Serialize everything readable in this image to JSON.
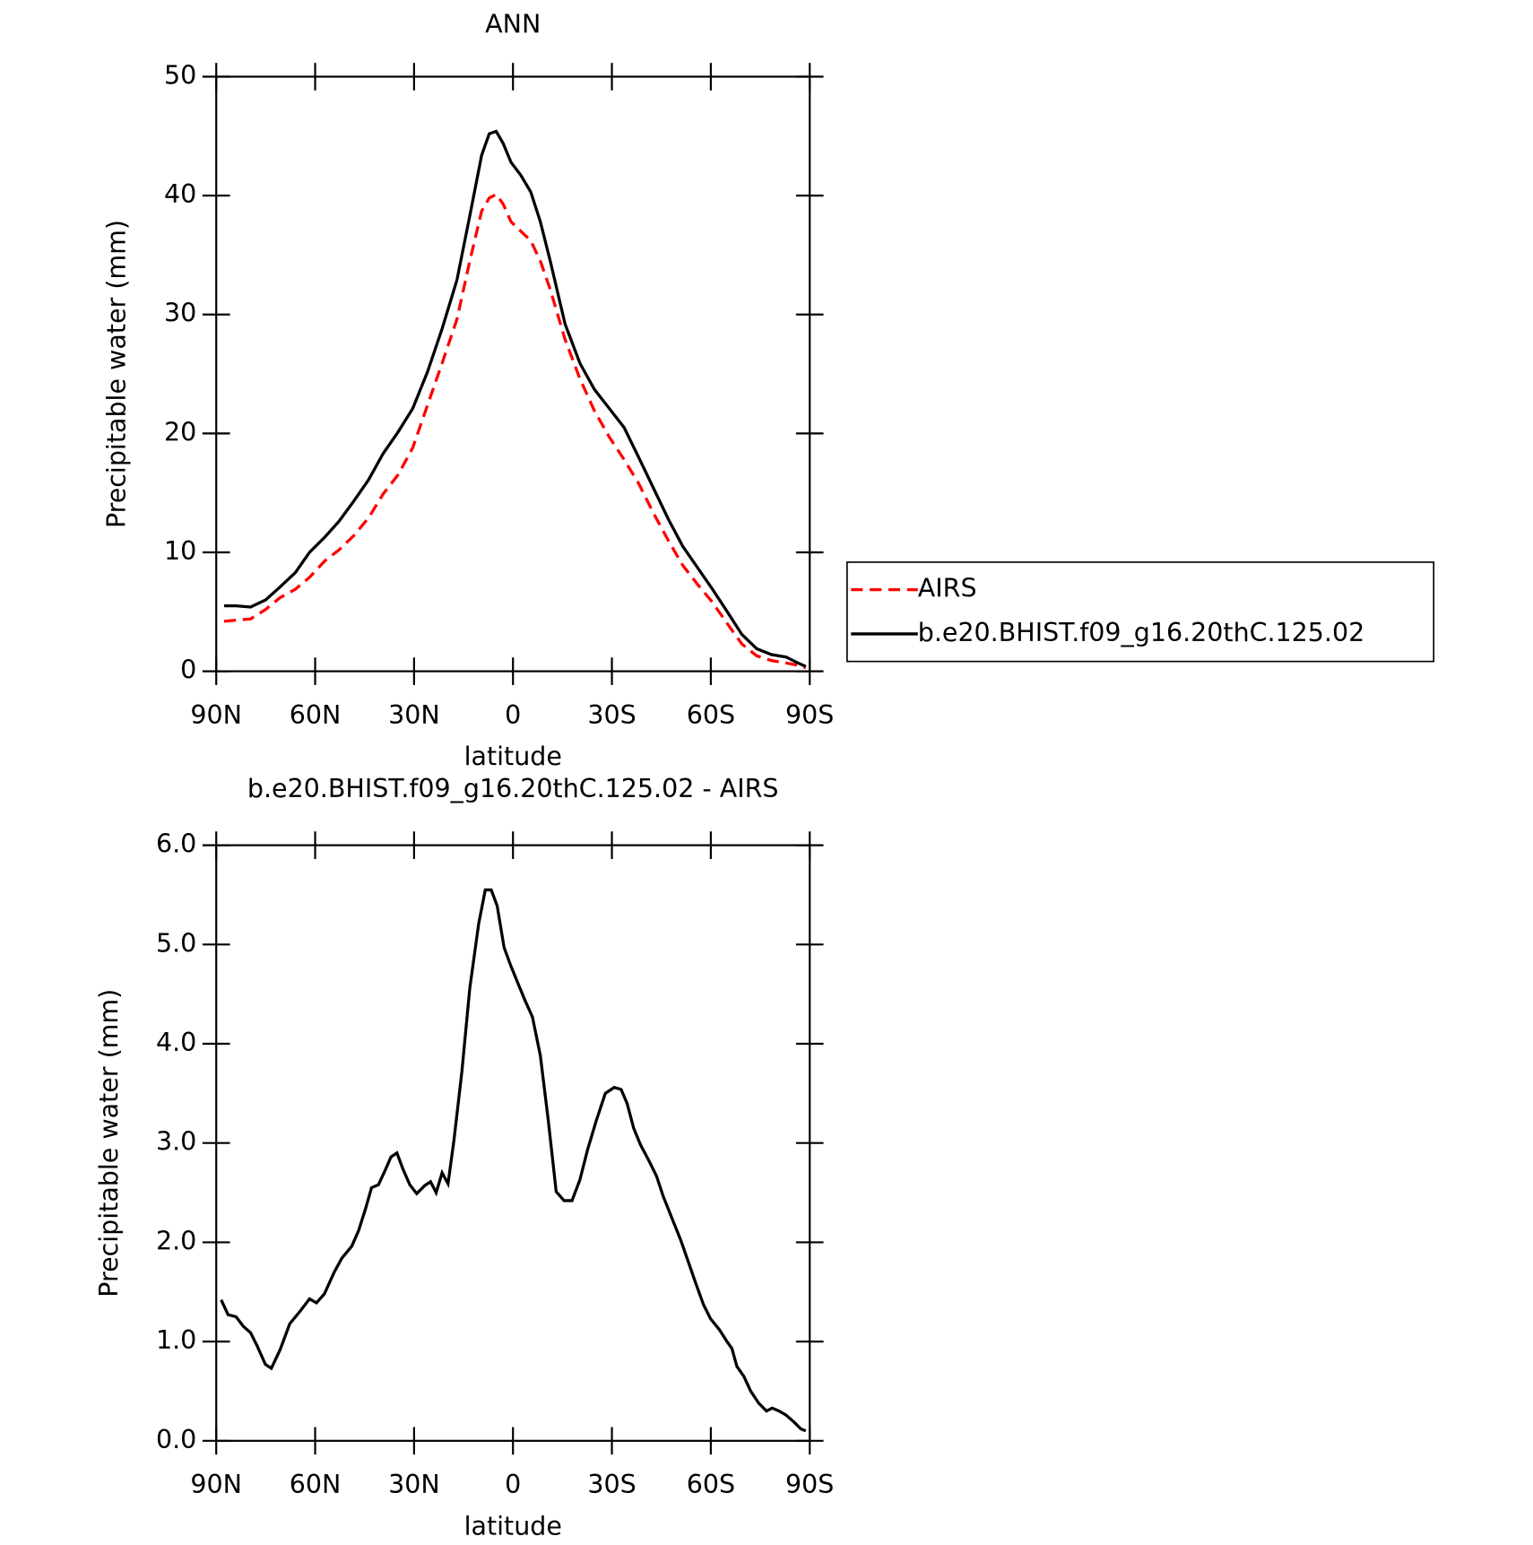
{
  "chart_data": [
    {
      "type": "line",
      "title": "ANN",
      "xlabel": "latitude",
      "ylabel": "Precipitable water (mm)",
      "xlim": [
        90,
        -90
      ],
      "ylim": [
        0,
        50
      ],
      "xticks": [
        {
          "value": 90,
          "label": "90N"
        },
        {
          "value": 60,
          "label": "60N"
        },
        {
          "value": 30,
          "label": "30N"
        },
        0,
        {
          "value": -30,
          "label": "30S"
        },
        {
          "value": -60,
          "label": "60S"
        },
        {
          "value": -90,
          "label": "90S"
        }
      ],
      "yticks": [
        0,
        10,
        20,
        30,
        40,
        50
      ],
      "legend": "right",
      "x": [
        87.6,
        84,
        79.6,
        75,
        70.6,
        66,
        61.7,
        57,
        52.8,
        48.3,
        43.8,
        39.4,
        34.9,
        30.4,
        25.9,
        21.5,
        17,
        13.1,
        9.5,
        7.2,
        5.1,
        3,
        0.6,
        -2.4,
        -5.4,
        -8.3,
        -11.3,
        -15.8,
        -20.3,
        -24.7,
        -29.2,
        -33.7,
        -38.1,
        -42.6,
        -47.1,
        -51.5,
        -56,
        -60.5,
        -65,
        -69.4,
        -73.9,
        -78.4,
        -82.8,
        -86.4,
        -88.8
      ],
      "series": [
        {
          "name": "AIRS",
          "color": "#ff0000",
          "style": "dashed",
          "values": [
            4.2,
            4.3,
            4.4,
            5.2,
            6.2,
            6.9,
            7.9,
            9.3,
            10.2,
            11.4,
            12.9,
            14.9,
            16.5,
            18.8,
            22.4,
            25.9,
            29.6,
            34.5,
            38.7,
            39.8,
            40.1,
            39.3,
            37.8,
            37.0,
            36.2,
            34.5,
            32.1,
            27.9,
            24.6,
            21.9,
            19.7,
            17.8,
            15.8,
            13.3,
            11.0,
            8.9,
            7.3,
            5.8,
            4.0,
            2.3,
            1.3,
            0.9,
            0.7,
            0.5,
            0.3
          ]
        },
        {
          "name": "b.e20.BHIST.f09_g16.20thC.125.02",
          "color": "#000000",
          "style": "solid",
          "values": [
            5.5,
            5.5,
            5.4,
            6.0,
            7.1,
            8.3,
            10.0,
            11.3,
            12.6,
            14.3,
            16.1,
            18.3,
            20.1,
            22.1,
            25.2,
            28.8,
            32.9,
            38.3,
            43.4,
            45.2,
            45.4,
            44.4,
            42.8,
            41.7,
            40.3,
            37.8,
            34.5,
            29.2,
            25.9,
            23.7,
            22.1,
            20.5,
            18.0,
            15.4,
            12.8,
            10.5,
            8.7,
            6.9,
            5.0,
            3.1,
            1.9,
            1.4,
            1.2,
            0.7,
            0.4
          ]
        }
      ]
    },
    {
      "type": "line",
      "title": "b.e20.BHIST.f09_g16.20thC.125.02 - AIRS",
      "xlabel": "latitude",
      "ylabel": "Precipitable water (mm)",
      "xlim": [
        90,
        -90
      ],
      "ylim": [
        0,
        6
      ],
      "xticks": [
        {
          "value": 90,
          "label": "90N"
        },
        {
          "value": 60,
          "label": "60N"
        },
        {
          "value": 30,
          "label": "30N"
        },
        0,
        {
          "value": -30,
          "label": "30S"
        },
        {
          "value": -60,
          "label": "60S"
        },
        {
          "value": -90,
          "label": "90S"
        }
      ],
      "yticks": [
        {
          "value": 0,
          "label": "0.0"
        },
        {
          "value": 1,
          "label": "1.0"
        },
        {
          "value": 2,
          "label": "2.0"
        },
        {
          "value": 3,
          "label": "3.0"
        },
        {
          "value": 4,
          "label": "4.0"
        },
        {
          "value": 5,
          "label": "5.0"
        },
        {
          "value": 6,
          "label": "6.0"
        }
      ],
      "x": [
        88.5,
        86.4,
        84.0,
        81.7,
        79.6,
        77.5,
        75.1,
        73.3,
        70.6,
        67.7,
        64.7,
        61.7,
        59.6,
        57.2,
        54.2,
        51.9,
        48.9,
        46.8,
        44.7,
        42.9,
        40.8,
        38.7,
        37.0,
        35.2,
        33.4,
        31.3,
        29.2,
        26.8,
        25.0,
        23.3,
        21.5,
        19.7,
        17.9,
        15.5,
        13.1,
        10.4,
        8.4,
        6.6,
        4.8,
        2.7,
        0.6,
        -1.5,
        -3.6,
        -5.9,
        -8.3,
        -10.7,
        -13.1,
        -15.5,
        -17.9,
        -20.3,
        -22.6,
        -25.3,
        -28.0,
        -30.7,
        -32.8,
        -34.6,
        -36.6,
        -38.7,
        -41.1,
        -43.5,
        -45.6,
        -48.6,
        -50.9,
        -53.0,
        -55.4,
        -57.8,
        -59.9,
        -62.6,
        -64.9,
        -66.4,
        -67.9,
        -70.0,
        -72.1,
        -74.5,
        -76.9,
        -78.6,
        -80.7,
        -82.8,
        -85.2,
        -87.3,
        -88.8
      ],
      "series": [
        {
          "color": "#000000",
          "style": "solid",
          "values": [
            1.42,
            1.27,
            1.25,
            1.15,
            1.09,
            0.95,
            0.77,
            0.73,
            0.92,
            1.18,
            1.3,
            1.43,
            1.39,
            1.48,
            1.7,
            1.84,
            1.96,
            2.12,
            2.34,
            2.55,
            2.58,
            2.73,
            2.86,
            2.9,
            2.74,
            2.58,
            2.49,
            2.57,
            2.61,
            2.5,
            2.7,
            2.59,
            3.03,
            3.72,
            4.56,
            5.21,
            5.55,
            5.55,
            5.39,
            4.97,
            4.78,
            4.61,
            4.44,
            4.27,
            3.88,
            3.23,
            2.51,
            2.42,
            2.42,
            2.63,
            2.93,
            3.23,
            3.5,
            3.56,
            3.54,
            3.4,
            3.15,
            2.98,
            2.83,
            2.67,
            2.46,
            2.21,
            2.02,
            1.82,
            1.59,
            1.37,
            1.23,
            1.12,
            1.0,
            0.93,
            0.75,
            0.65,
            0.5,
            0.38,
            0.3,
            0.33,
            0.3,
            0.26,
            0.19,
            0.12,
            0.1
          ]
        }
      ]
    }
  ]
}
